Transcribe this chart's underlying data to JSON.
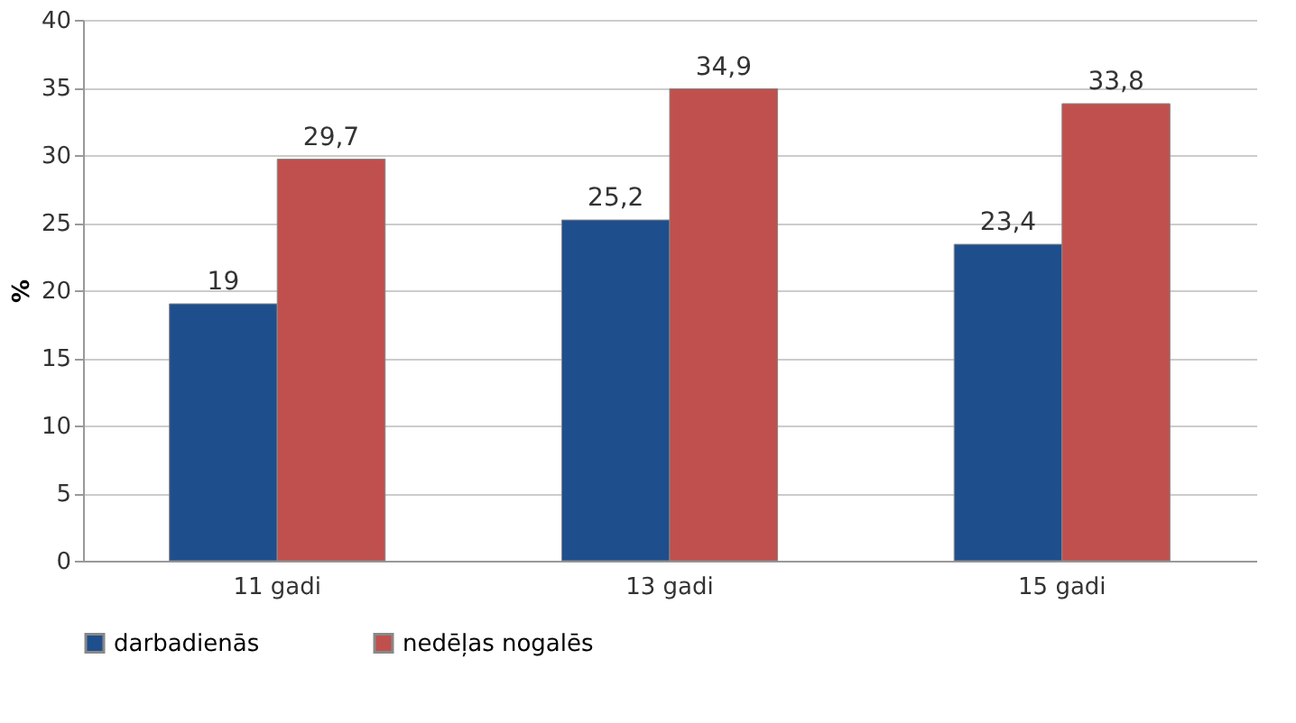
{
  "chart_data": {
    "type": "bar",
    "ylabel": "%",
    "categories": [
      "11 gadi",
      "13 gadi",
      "15 gadi"
    ],
    "series": [
      {
        "name": "darbadienās",
        "color": "#1f4e8c",
        "values": [
          19,
          25.2,
          23.4
        ]
      },
      {
        "name": "nedēļas nogalēs",
        "color": "#c0504d",
        "values": [
          29.7,
          34.9,
          33.8
        ]
      }
    ],
    "value_labels": [
      [
        "19",
        "25,2",
        "23,4"
      ],
      [
        "29,7",
        "34,9",
        "33,8"
      ]
    ],
    "ylim": [
      0,
      40
    ],
    "yticks": [
      0,
      5,
      10,
      15,
      20,
      25,
      30,
      35,
      40
    ],
    "grid": "y",
    "legend": "bottom"
  }
}
